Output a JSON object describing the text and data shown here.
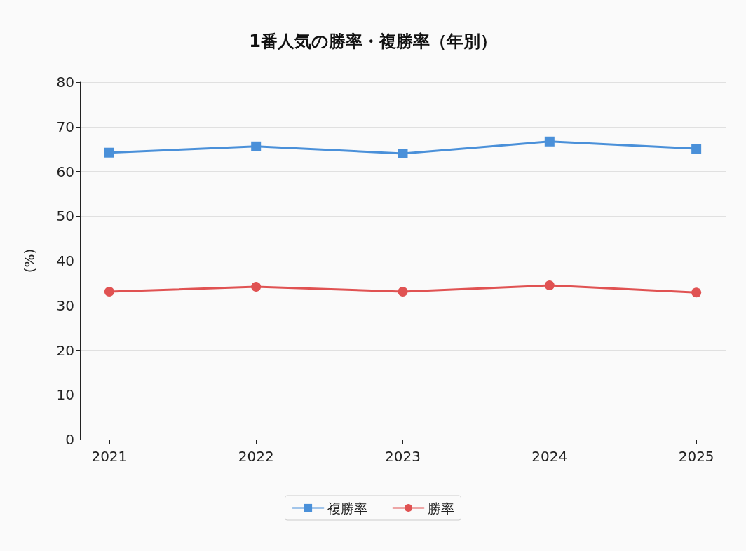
{
  "chart_data": {
    "type": "line",
    "title": "1番人気の勝率・複勝率（年別）",
    "ylabel": "(%)",
    "x": [
      2021,
      2022,
      2023,
      2024,
      2025
    ],
    "xlim": [
      2020.8,
      2025.2
    ],
    "xticks": [
      2021,
      2022,
      2023,
      2024,
      2025
    ],
    "ylim": [
      0,
      80
    ],
    "yticks": [
      0,
      10,
      20,
      30,
      40,
      50,
      60,
      70,
      80
    ],
    "series": [
      {
        "name": "複勝率",
        "color": "#4a90d9",
        "values": [
          64.2,
          65.6,
          64.0,
          66.7,
          65.1
        ],
        "marker": "square"
      },
      {
        "name": "勝率",
        "color": "#e05252",
        "values": [
          33.1,
          34.2,
          33.1,
          34.5,
          32.9
        ],
        "marker": "circle"
      }
    ],
    "grid": "y",
    "legend": "bottom",
    "line_style": "solid"
  }
}
